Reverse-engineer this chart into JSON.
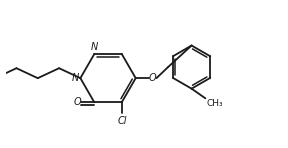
{
  "bg_color": "#ffffff",
  "line_color": "#1a1a1a",
  "lw": 1.3,
  "font_size": 7.0,
  "fig_w": 2.88,
  "fig_h": 1.48,
  "dpi": 100,
  "xlim": [
    -0.5,
    9.5
  ],
  "ylim": [
    1.5,
    6.8
  ]
}
